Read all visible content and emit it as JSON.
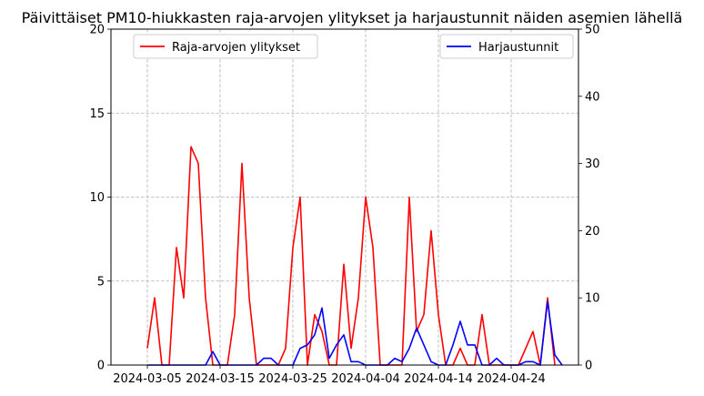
{
  "chart_data": {
    "type": "line",
    "title": "Päivittäiset PM10-hiukkasten raja-arvojen ylitykset ja harjaustunnit näiden asemien lähellä",
    "xlabel": "",
    "ylabel_left": "",
    "ylabel_right": "",
    "x_start": "2024-03-05",
    "x_tick_labels": [
      "2024-03-05",
      "2024-03-15",
      "2024-03-25",
      "2024-04-04",
      "2024-04-14",
      "2024-04-24"
    ],
    "ylim_left": [
      0,
      20
    ],
    "yticks_left": [
      0,
      5,
      10,
      15,
      20
    ],
    "ylim_right": [
      0,
      50
    ],
    "yticks_right": [
      0,
      10,
      20,
      30,
      40,
      50
    ],
    "grid": true,
    "series": [
      {
        "name": "Raja-arvojen ylitykset",
        "axis": "left",
        "color": "#ff0000",
        "legend_position": "upper-left",
        "points": [
          [
            "2024-03-05",
            1
          ],
          [
            "2024-03-06",
            4
          ],
          [
            "2024-03-07",
            0
          ],
          [
            "2024-03-08",
            0
          ],
          [
            "2024-03-09",
            7
          ],
          [
            "2024-03-10",
            4
          ],
          [
            "2024-03-11",
            13
          ],
          [
            "2024-03-12",
            12
          ],
          [
            "2024-03-13",
            4
          ],
          [
            "2024-03-14",
            0
          ],
          [
            "2024-03-15",
            0
          ],
          [
            "2024-03-16",
            0
          ],
          [
            "2024-03-17",
            3
          ],
          [
            "2024-03-18",
            12
          ],
          [
            "2024-03-19",
            4
          ],
          [
            "2024-03-20",
            0
          ],
          [
            "2024-03-21",
            0
          ],
          [
            "2024-03-22",
            0
          ],
          [
            "2024-03-23",
            0
          ],
          [
            "2024-03-24",
            1
          ],
          [
            "2024-03-25",
            7
          ],
          [
            "2024-03-26",
            10
          ],
          [
            "2024-03-27",
            0
          ],
          [
            "2024-03-28",
            3
          ],
          [
            "2024-03-29",
            2
          ],
          [
            "2024-03-30",
            0
          ],
          [
            "2024-03-31",
            0
          ],
          [
            "2024-04-01",
            6
          ],
          [
            "2024-04-02",
            1
          ],
          [
            "2024-04-03",
            4
          ],
          [
            "2024-04-04",
            10
          ],
          [
            "2024-04-05",
            7
          ],
          [
            "2024-04-06",
            0
          ],
          [
            "2024-04-07",
            0
          ],
          [
            "2024-04-08",
            0
          ],
          [
            "2024-04-09",
            0
          ],
          [
            "2024-04-10",
            10
          ],
          [
            "2024-04-11",
            2
          ],
          [
            "2024-04-12",
            3
          ],
          [
            "2024-04-13",
            8
          ],
          [
            "2024-04-14",
            3
          ],
          [
            "2024-04-15",
            0
          ],
          [
            "2024-04-16",
            0
          ],
          [
            "2024-04-17",
            1
          ],
          [
            "2024-04-18",
            0
          ],
          [
            "2024-04-19",
            0
          ],
          [
            "2024-04-20",
            3
          ],
          [
            "2024-04-21",
            0
          ],
          [
            "2024-04-22",
            0
          ],
          [
            "2024-04-23",
            0
          ],
          [
            "2024-04-24",
            0
          ],
          [
            "2024-04-25",
            0
          ],
          [
            "2024-04-26",
            1
          ],
          [
            "2024-04-27",
            2
          ],
          [
            "2024-04-28",
            0
          ],
          [
            "2024-04-29",
            4
          ],
          [
            "2024-04-30",
            0
          ]
        ]
      },
      {
        "name": "Harjaustunnit",
        "axis": "right",
        "color": "#0000ff",
        "legend_position": "upper-right",
        "points": [
          [
            "2024-03-05",
            0
          ],
          [
            "2024-03-06",
            0
          ],
          [
            "2024-03-07",
            0
          ],
          [
            "2024-03-08",
            0
          ],
          [
            "2024-03-09",
            0
          ],
          [
            "2024-03-10",
            0
          ],
          [
            "2024-03-11",
            0
          ],
          [
            "2024-03-12",
            0
          ],
          [
            "2024-03-13",
            0
          ],
          [
            "2024-03-14",
            2
          ],
          [
            "2024-03-15",
            0
          ],
          [
            "2024-03-16",
            0
          ],
          [
            "2024-03-17",
            0
          ],
          [
            "2024-03-18",
            0
          ],
          [
            "2024-03-19",
            0
          ],
          [
            "2024-03-20",
            0
          ],
          [
            "2024-03-21",
            1
          ],
          [
            "2024-03-22",
            1
          ],
          [
            "2024-03-23",
            0
          ],
          [
            "2024-03-24",
            0
          ],
          [
            "2024-03-25",
            0
          ],
          [
            "2024-03-26",
            2.5
          ],
          [
            "2024-03-27",
            3
          ],
          [
            "2024-03-28",
            4.5
          ],
          [
            "2024-03-29",
            8.5
          ],
          [
            "2024-03-30",
            1
          ],
          [
            "2024-03-31",
            3
          ],
          [
            "2024-04-01",
            4.5
          ],
          [
            "2024-04-02",
            0.5
          ],
          [
            "2024-04-03",
            0.5
          ],
          [
            "2024-04-04",
            0
          ],
          [
            "2024-04-05",
            0
          ],
          [
            "2024-04-06",
            0
          ],
          [
            "2024-04-07",
            0
          ],
          [
            "2024-04-08",
            1
          ],
          [
            "2024-04-09",
            0.5
          ],
          [
            "2024-04-10",
            2.5
          ],
          [
            "2024-04-11",
            5.5
          ],
          [
            "2024-04-12",
            3
          ],
          [
            "2024-04-13",
            0.5
          ],
          [
            "2024-04-14",
            0
          ],
          [
            "2024-04-15",
            0
          ],
          [
            "2024-04-16",
            3
          ],
          [
            "2024-04-17",
            6.5
          ],
          [
            "2024-04-18",
            3
          ],
          [
            "2024-04-19",
            3
          ],
          [
            "2024-04-20",
            0
          ],
          [
            "2024-04-21",
            0
          ],
          [
            "2024-04-22",
            1
          ],
          [
            "2024-04-23",
            0
          ],
          [
            "2024-04-24",
            0
          ],
          [
            "2024-04-25",
            0
          ],
          [
            "2024-04-26",
            0.5
          ],
          [
            "2024-04-27",
            0.5
          ],
          [
            "2024-04-28",
            0
          ],
          [
            "2024-04-29",
            9.5
          ],
          [
            "2024-04-30",
            1.5
          ],
          [
            "2024-05-01",
            0
          ]
        ]
      }
    ]
  }
}
